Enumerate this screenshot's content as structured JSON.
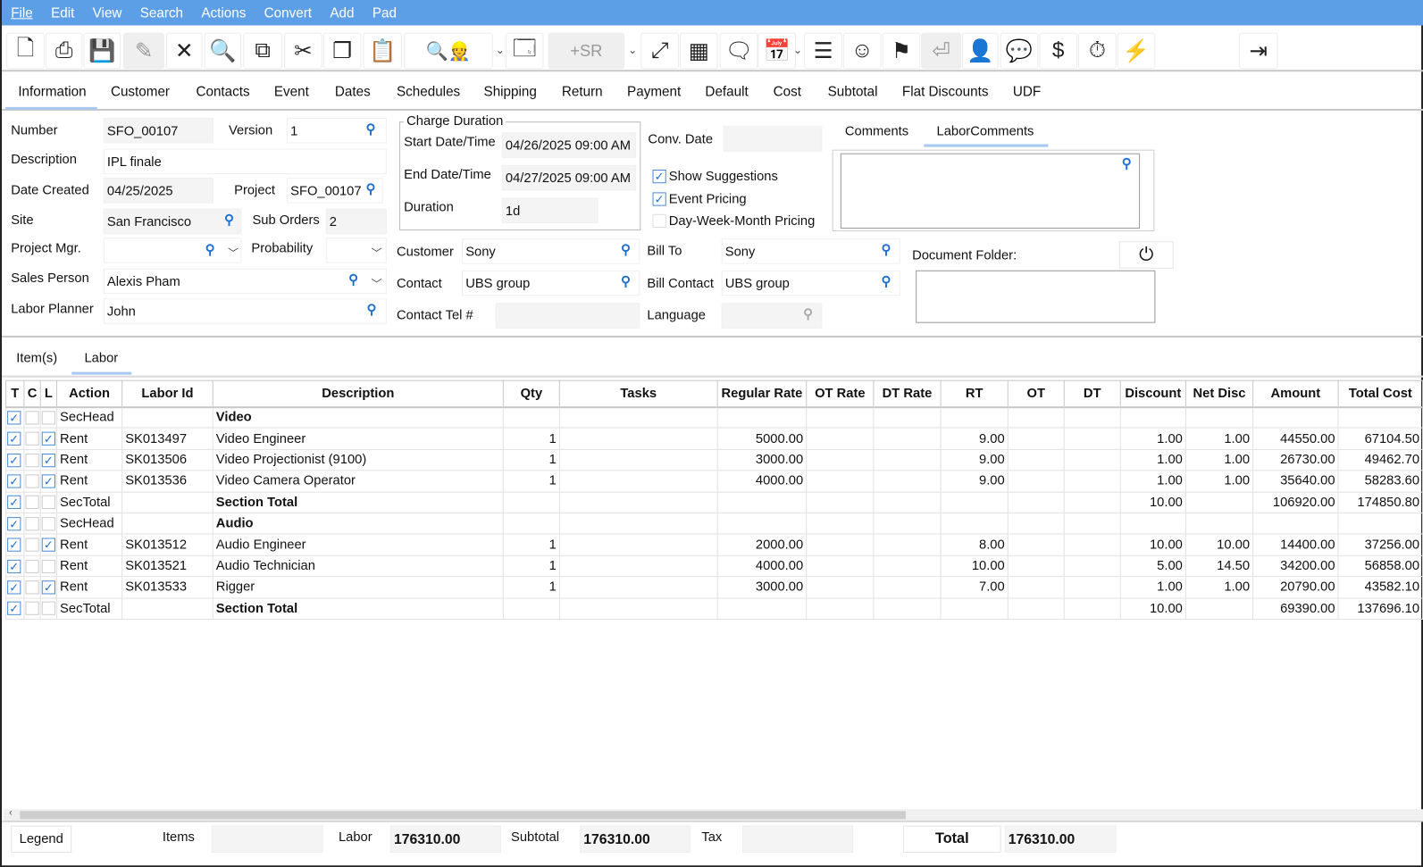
{
  "menu": [
    "File",
    "Edit",
    "View",
    "Search",
    "Actions",
    "Convert",
    "Add",
    "Pad"
  ],
  "toolbar": [
    {
      "name": "new-document-icon",
      "glyph": "🗋"
    },
    {
      "name": "print-icon",
      "glyph": "⎙"
    },
    {
      "name": "save-icon",
      "glyph": "💾"
    },
    {
      "name": "edit-pencil-icon",
      "glyph": "✎"
    },
    {
      "name": "close-x-icon",
      "glyph": "✕"
    },
    {
      "name": "search-icon",
      "glyph": "🔍"
    },
    {
      "name": "copy-number-icon",
      "glyph": "⧉"
    },
    {
      "name": "cut-scissors-icon",
      "glyph": "✂"
    },
    {
      "name": "duplicate-icon",
      "glyph": "❐"
    },
    {
      "name": "clipboard-icon",
      "glyph": "📋"
    },
    {
      "name": "search-worker-icon",
      "glyph": "🔍👷"
    },
    {
      "name": "search-window-icon",
      "glyph": "🗔"
    },
    {
      "name": "add-sr-button",
      "glyph": "+SR"
    },
    {
      "name": "expand-icon",
      "glyph": "⤢"
    },
    {
      "name": "grid-icon",
      "glyph": "▦"
    },
    {
      "name": "comment-icon",
      "glyph": "🗨"
    },
    {
      "name": "calendar-check-icon",
      "glyph": "📅"
    },
    {
      "name": "layers-icon",
      "glyph": "☰"
    },
    {
      "name": "smiley-icon",
      "glyph": "☺"
    },
    {
      "name": "flag-icon",
      "glyph": "⚑"
    },
    {
      "name": "return-tray-icon",
      "glyph": "⏎"
    },
    {
      "name": "head-gear-icon",
      "glyph": "👤"
    },
    {
      "name": "speech-zero-icon",
      "glyph": "💬"
    },
    {
      "name": "invoice-dollar-icon",
      "glyph": "$"
    },
    {
      "name": "clock-dollar-icon",
      "glyph": "⏱"
    },
    {
      "name": "lightning-icon",
      "glyph": "⚡"
    },
    {
      "name": "logout-icon",
      "glyph": "⇥"
    }
  ],
  "tabs": [
    "Information",
    "Customer",
    "Contacts",
    "Event",
    "Dates",
    "Schedules",
    "Shipping",
    "Return",
    "Payment",
    "Default",
    "Cost",
    "Subtotal",
    "Flat Discounts",
    "UDF"
  ],
  "form": {
    "number_label": "Number",
    "number": "SFO_00107",
    "version_label": "Version",
    "version": "1",
    "description_label": "Description",
    "description": "IPL finale",
    "date_created_label": "Date Created",
    "date_created": "04/25/2025",
    "project_label": "Project",
    "project": "SFO_00107",
    "site_label": "Site",
    "site": "San Francisco",
    "sub_orders_label": "Sub Orders",
    "sub_orders": "2",
    "project_mgr_label": "Project Mgr.",
    "project_mgr": "",
    "probability_label": "Probability",
    "probability": "",
    "sales_person_label": "Sales Person",
    "sales_person": "Alexis Pham",
    "labor_planner_label": "Labor Planner",
    "labor_planner": "John",
    "charge_duration_label": "Charge Duration",
    "start_label": "Start Date/Time",
    "start": "04/26/2025 09:00 AM",
    "end_label": "End Date/Time",
    "end": "04/27/2025 09:00 AM",
    "duration_label": "Duration",
    "duration": "1d",
    "conv_date_label": "Conv. Date",
    "conv_date": "",
    "show_suggestions_label": "Show Suggestions",
    "show_suggestions": true,
    "event_pricing_label": "Event Pricing",
    "event_pricing": true,
    "dwm_pricing_label": "Day-Week-Month Pricing",
    "dwm_pricing": false,
    "comments_tab": "Comments",
    "labor_comments_tab": "LaborComments",
    "customer_label": "Customer",
    "customer": "Sony",
    "bill_to_label": "Bill To",
    "bill_to": "Sony",
    "contact_label": "Contact",
    "contact": "UBS group",
    "bill_contact_label": "Bill Contact",
    "bill_contact": "UBS group",
    "contact_tel_label": "Contact Tel #",
    "contact_tel": "",
    "language_label": "Language",
    "language": "",
    "document_folder_label": "Document Folder:"
  },
  "subtabs": [
    "Item(s)",
    "Labor"
  ],
  "table": {
    "columns": [
      "T",
      "C",
      "L",
      "Action",
      "Labor Id",
      "Description",
      "Qty",
      "Tasks",
      "Regular Rate",
      "OT Rate",
      "DT Rate",
      "RT",
      "OT",
      "DT",
      "Discount",
      "Net Disc",
      "Amount",
      "Total Cost"
    ],
    "rows": [
      {
        "t": true,
        "c": false,
        "l": false,
        "action": "SecHead",
        "id": "",
        "desc": "Video",
        "bold": true,
        "qty": "",
        "tasks": "",
        "rate": "",
        "ot_rate": "",
        "dt_rate": "",
        "rt": "",
        "ot": "",
        "dt": "",
        "disc": "",
        "net": "",
        "amount": "",
        "total": ""
      },
      {
        "t": true,
        "c": false,
        "l": true,
        "action": "Rent",
        "id": "SK013497",
        "desc": "Video Engineer",
        "bold": false,
        "qty": "1",
        "tasks": "",
        "rate": "5000.00",
        "ot_rate": "",
        "dt_rate": "",
        "rt": "9.00",
        "ot": "",
        "dt": "",
        "disc": "1.00",
        "net": "1.00",
        "amount": "44550.00",
        "total": "67104.50"
      },
      {
        "t": true,
        "c": false,
        "l": true,
        "action": "Rent",
        "id": "SK013506",
        "desc": "Video Projectionist (9100)",
        "bold": false,
        "qty": "1",
        "tasks": "",
        "rate": "3000.00",
        "ot_rate": "",
        "dt_rate": "",
        "rt": "9.00",
        "ot": "",
        "dt": "",
        "disc": "1.00",
        "net": "1.00",
        "amount": "26730.00",
        "total": "49462.70"
      },
      {
        "t": true,
        "c": false,
        "l": true,
        "action": "Rent",
        "id": "SK013536",
        "desc": "Video Camera Operator",
        "bold": false,
        "qty": "1",
        "tasks": "",
        "rate": "4000.00",
        "ot_rate": "",
        "dt_rate": "",
        "rt": "9.00",
        "ot": "",
        "dt": "",
        "disc": "1.00",
        "net": "1.00",
        "amount": "35640.00",
        "total": "58283.60"
      },
      {
        "t": true,
        "c": false,
        "l": false,
        "action": "SecTotal",
        "id": "",
        "desc": "Section Total",
        "bold": true,
        "qty": "",
        "tasks": "",
        "rate": "",
        "ot_rate": "",
        "dt_rate": "",
        "rt": "",
        "ot": "",
        "dt": "",
        "disc": "10.00",
        "net": "",
        "amount": "106920.00",
        "total": "174850.80"
      },
      {
        "t": true,
        "c": false,
        "l": false,
        "action": "SecHead",
        "id": "",
        "desc": "Audio",
        "bold": true,
        "qty": "",
        "tasks": "",
        "rate": "",
        "ot_rate": "",
        "dt_rate": "",
        "rt": "",
        "ot": "",
        "dt": "",
        "disc": "",
        "net": "",
        "amount": "",
        "total": ""
      },
      {
        "t": true,
        "c": false,
        "l": true,
        "action": "Rent",
        "id": "SK013512",
        "desc": "Audio Engineer",
        "bold": false,
        "qty": "1",
        "tasks": "",
        "rate": "2000.00",
        "ot_rate": "",
        "dt_rate": "",
        "rt": "8.00",
        "ot": "",
        "dt": "",
        "disc": "10.00",
        "net": "10.00",
        "amount": "14400.00",
        "total": "37256.00"
      },
      {
        "t": true,
        "c": false,
        "l": false,
        "action": "Rent",
        "id": "SK013521",
        "desc": "Audio Technician",
        "bold": false,
        "qty": "1",
        "tasks": "",
        "rate": "4000.00",
        "ot_rate": "",
        "dt_rate": "",
        "rt": "10.00",
        "ot": "",
        "dt": "",
        "disc": "5.00",
        "net": "14.50",
        "amount": "34200.00",
        "total": "56858.00"
      },
      {
        "t": true,
        "c": false,
        "l": true,
        "action": "Rent",
        "id": "SK013533",
        "desc": "Rigger",
        "bold": false,
        "qty": "1",
        "tasks": "",
        "rate": "3000.00",
        "ot_rate": "",
        "dt_rate": "",
        "rt": "7.00",
        "ot": "",
        "dt": "",
        "disc": "1.00",
        "net": "1.00",
        "amount": "20790.00",
        "total": "43582.10"
      },
      {
        "t": true,
        "c": false,
        "l": false,
        "action": "SecTotal",
        "id": "",
        "desc": "Section Total",
        "bold": true,
        "qty": "",
        "tasks": "",
        "rate": "",
        "ot_rate": "",
        "dt_rate": "",
        "rt": "",
        "ot": "",
        "dt": "",
        "disc": "10.00",
        "net": "",
        "amount": "69390.00",
        "total": "137696.10"
      }
    ]
  },
  "footer": {
    "legend": "Legend",
    "items_label": "Items",
    "items": "",
    "labor_label": "Labor",
    "labor": "176310.00",
    "subtotal_label": "Subtotal",
    "subtotal": "176310.00",
    "tax_label": "Tax",
    "tax": "",
    "total_label": "Total",
    "total": "176310.00"
  },
  "colors": {
    "menubar": "#5d9fe6",
    "accent": "#1e6fd0",
    "lightning": "#e53935"
  }
}
